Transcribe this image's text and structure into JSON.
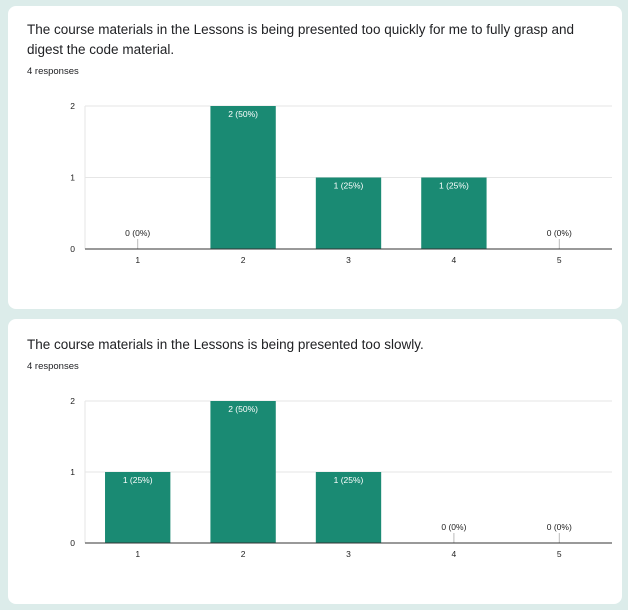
{
  "colors": {
    "bar": "#1a8a73",
    "grid": "#e6e6e6",
    "axis": "#333333",
    "label_inside": "#ffffff",
    "label_outside": "#222222"
  },
  "cards": [
    {
      "question": "The course materials in the Lessons is being presented too quickly for me to fully grasp and digest the code material.",
      "responses": "4 responses",
      "chart_data": {
        "type": "bar",
        "categories": [
          "1",
          "2",
          "3",
          "4",
          "5"
        ],
        "values": [
          0,
          2,
          1,
          1,
          0
        ],
        "labels": [
          "0 (0%)",
          "2 (50%)",
          "1 (25%)",
          "1 (25%)",
          "0 (0%)"
        ],
        "yticks": [
          "0",
          "1",
          "2"
        ],
        "ylim": [
          0,
          2
        ],
        "grid": true
      }
    },
    {
      "question": "The course materials in the Lessons is being presented too slowly.",
      "responses": "4 responses",
      "chart_data": {
        "type": "bar",
        "categories": [
          "1",
          "2",
          "3",
          "4",
          "5"
        ],
        "values": [
          1,
          2,
          1,
          0,
          0
        ],
        "labels": [
          "1 (25%)",
          "2 (50%)",
          "1 (25%)",
          "0 (0%)",
          "0 (0%)"
        ],
        "yticks": [
          "0",
          "1",
          "2"
        ],
        "ylim": [
          0,
          2
        ],
        "grid": true
      }
    }
  ]
}
